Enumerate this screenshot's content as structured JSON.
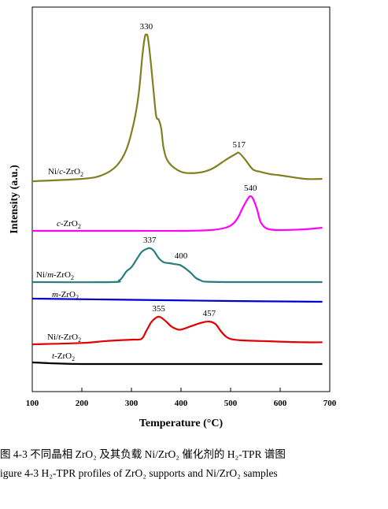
{
  "chart_data": {
    "type": "line",
    "xlabel": "Temperature (°C)",
    "ylabel": "Intensity (a.u.)",
    "xlim": [
      100,
      700
    ],
    "xticks": [
      100,
      200,
      300,
      400,
      500,
      600,
      700
    ],
    "xtick_labels": [
      "100",
      "200",
      "300",
      "400",
      "500",
      "600",
      "700"
    ],
    "grid": false,
    "series": [
      {
        "name": "Ni/c-ZrO2",
        "label_parts": [
          "Ni/",
          "c",
          "-ZrO",
          "2"
        ],
        "color": "#808020",
        "baseline": 0.0,
        "x": [
          100,
          200,
          240,
          270,
          290,
          305,
          315,
          322,
          327,
          330,
          333,
          338,
          345,
          350,
          355,
          360,
          365,
          375,
          400,
          430,
          460,
          490,
          510,
          517,
          530,
          545,
          560,
          580,
          600,
          650,
          685
        ],
        "y": [
          0.0,
          0.02,
          0.05,
          0.13,
          0.27,
          0.5,
          0.75,
          1.06,
          1.22,
          1.24,
          1.22,
          1.05,
          0.75,
          0.55,
          0.52,
          0.45,
          0.28,
          0.16,
          0.08,
          0.07,
          0.1,
          0.18,
          0.23,
          0.24,
          0.18,
          0.1,
          0.08,
          0.06,
          0.05,
          0.02,
          0.02
        ],
        "peak_labels": [
          {
            "x": 330,
            "y": 1.24,
            "text": "330"
          },
          {
            "x": 517,
            "y": 0.24,
            "text": "517"
          }
        ]
      },
      {
        "name": "c-ZrO2",
        "label_parts": [
          "",
          "c",
          "-ZrO",
          "2"
        ],
        "color": "#ff00ff",
        "baseline": 0.0,
        "x": [
          100,
          300,
          400,
          460,
          490,
          505,
          515,
          525,
          535,
          540,
          545,
          553,
          560,
          568,
          578,
          600,
          650,
          685
        ],
        "y": [
          0.0,
          0.0,
          0.0,
          0.01,
          0.04,
          0.09,
          0.17,
          0.3,
          0.41,
          0.44,
          0.41,
          0.28,
          0.12,
          0.05,
          0.02,
          0.01,
          0.02,
          0.04
        ],
        "peak_labels": [
          {
            "x": 540,
            "y": 0.44,
            "text": "540"
          }
        ]
      },
      {
        "name": "Ni/m-ZrO2",
        "label_parts": [
          "Ni/",
          "m",
          "-ZrO",
          "2"
        ],
        "color": "#2a7c7c",
        "baseline": 0.0,
        "x": [
          100,
          260,
          275,
          282,
          290,
          300,
          310,
          320,
          330,
          337,
          345,
          355,
          365,
          375,
          385,
          395,
          400,
          410,
          420,
          430,
          440,
          450,
          500,
          600,
          685
        ],
        "y": [
          0.0,
          0.0,
          0.02,
          0.06,
          0.13,
          0.18,
          0.27,
          0.36,
          0.4,
          0.41,
          0.38,
          0.29,
          0.24,
          0.23,
          0.22,
          0.21,
          0.2,
          0.16,
          0.11,
          0.05,
          0.02,
          0.005,
          0.0,
          0.0,
          0.0
        ],
        "peak_labels": [
          {
            "x": 337,
            "y": 0.41,
            "text": "337"
          },
          {
            "x": 400,
            "y": 0.22,
            "text": "400"
          }
        ]
      },
      {
        "name": "m-ZrO2",
        "label_parts": [
          "",
          "m",
          "-ZrO",
          "2"
        ],
        "color": "#0000cc",
        "baseline": 0.0,
        "x": [
          100,
          300,
          500,
          685
        ],
        "y": [
          0.03,
          0.015,
          0.0,
          -0.01
        ],
        "peak_labels": []
      },
      {
        "name": "Ni/t-ZrO2",
        "label_parts": [
          "Ni/",
          "t",
          "-ZrO",
          "2"
        ],
        "color": "#e00000",
        "baseline": 0.0,
        "x": [
          100,
          200,
          250,
          300,
          320,
          330,
          340,
          350,
          355,
          360,
          370,
          380,
          390,
          400,
          420,
          440,
          457,
          470,
          480,
          490,
          500,
          520,
          560,
          600,
          650,
          685
        ],
        "y": [
          0.0,
          0.02,
          0.05,
          0.07,
          0.08,
          0.2,
          0.33,
          0.4,
          0.41,
          0.4,
          0.34,
          0.27,
          0.23,
          0.22,
          0.27,
          0.32,
          0.34,
          0.3,
          0.2,
          0.12,
          0.08,
          0.06,
          0.05,
          0.04,
          0.03,
          0.03
        ],
        "peak_labels": [
          {
            "x": 355,
            "y": 0.41,
            "text": "355"
          },
          {
            "x": 457,
            "y": 0.34,
            "text": "457"
          }
        ]
      },
      {
        "name": "t-ZrO2",
        "label_parts": [
          "",
          "t",
          "-ZrO",
          "2"
        ],
        "color": "#000000",
        "baseline": 0.0,
        "x": [
          100,
          200,
          400,
          685
        ],
        "y": [
          0.02,
          0.0,
          0.0,
          0.0
        ],
        "peak_labels": []
      }
    ]
  },
  "captions": {
    "zh": "图 4-3  不同晶相 ZrO₂ 及其负载 Ni/ZrO₂ 催化剂的 H₂-TPR 谱图",
    "en": "igure 4-3 H₂-TPR profiles of ZrO₂ supports and Ni/ZrO₂ samples"
  }
}
